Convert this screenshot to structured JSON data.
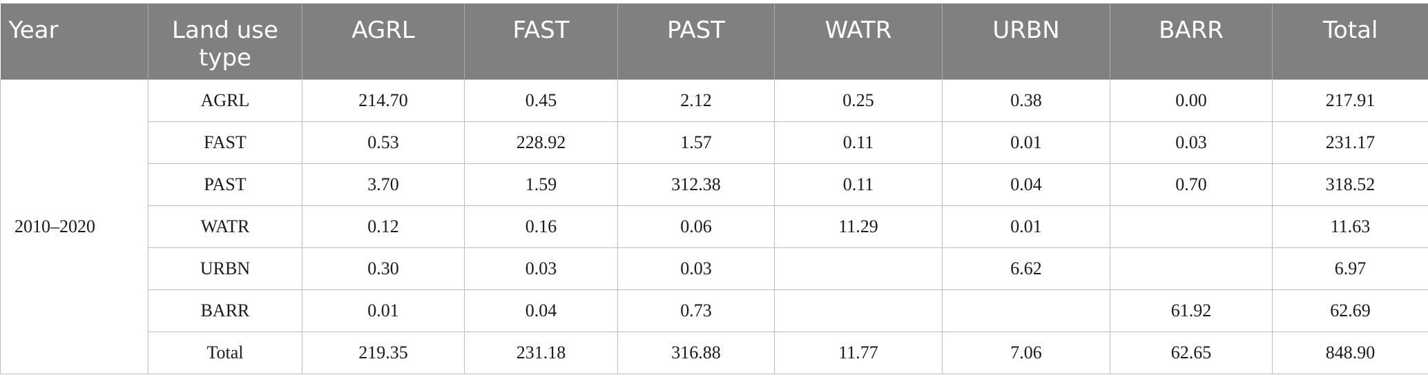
{
  "table": {
    "headers": [
      "Year",
      "Land use type",
      "AGRL",
      "FAST",
      "PAST",
      "WATR",
      "URBN",
      "BARR",
      "Total"
    ],
    "year_period": "2010–2020",
    "rows": [
      {
        "type": "AGRL",
        "values": [
          "214.70",
          "0.45",
          "2.12",
          "0.25",
          "0.38",
          "0.00",
          "217.91"
        ]
      },
      {
        "type": "FAST",
        "values": [
          "0.53",
          "228.92",
          "1.57",
          "0.11",
          "0.01",
          "0.03",
          "231.17"
        ]
      },
      {
        "type": "PAST",
        "values": [
          "3.70",
          "1.59",
          "312.38",
          "0.11",
          "0.04",
          "0.70",
          "318.52"
        ]
      },
      {
        "type": "WATR",
        "values": [
          "0.12",
          "0.16",
          "0.06",
          "11.29",
          "0.01",
          "",
          "11.63"
        ]
      },
      {
        "type": "URBN",
        "values": [
          "0.30",
          "0.03",
          "0.03",
          "",
          "6.62",
          "",
          "6.97"
        ]
      },
      {
        "type": "BARR",
        "values": [
          "0.01",
          "0.04",
          "0.73",
          "",
          "",
          "61.92",
          "62.69"
        ]
      },
      {
        "type": "Total",
        "values": [
          "219.35",
          "231.18",
          "316.88",
          "11.77",
          "7.06",
          "62.65",
          "848.90"
        ]
      }
    ]
  },
  "colors": {
    "header_background": "#7f807f",
    "header_text": "#ffffff",
    "grid_line": "#bdbdbd",
    "body_text": "#1a1a1a"
  }
}
